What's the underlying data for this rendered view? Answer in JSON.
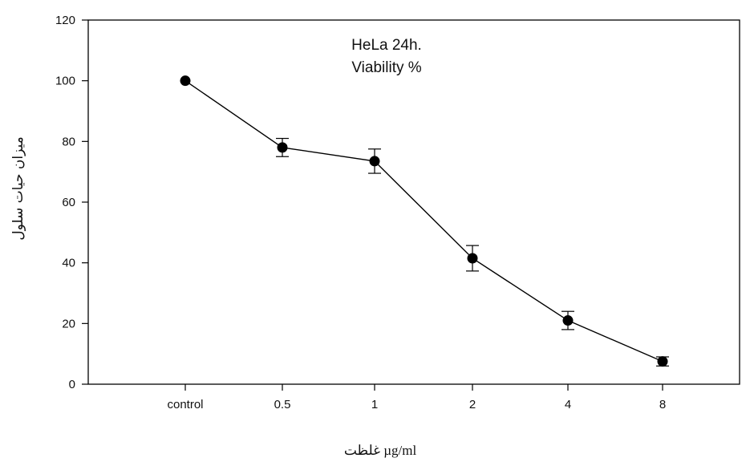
{
  "chart_data": {
    "type": "line",
    "categories": [
      "control",
      "0.5",
      "1",
      "2",
      "4",
      "8"
    ],
    "series": [
      {
        "values": [
          100,
          78,
          73.5,
          41.5,
          21,
          7.5
        ],
        "error": [
          0,
          3,
          4,
          4.2,
          3,
          1.5
        ]
      }
    ],
    "annotation": [
      "HeLa 24h.",
      "Viability %"
    ],
    "xlabel": "غلظت µg/ml",
    "ylabel": "میزان حیات سلول",
    "ylim": [
      0,
      120
    ],
    "yticks": [
      0,
      20,
      40,
      60,
      80,
      100,
      120
    ],
    "grid": false,
    "line_color": "#000000",
    "marker_color": "#000000"
  }
}
